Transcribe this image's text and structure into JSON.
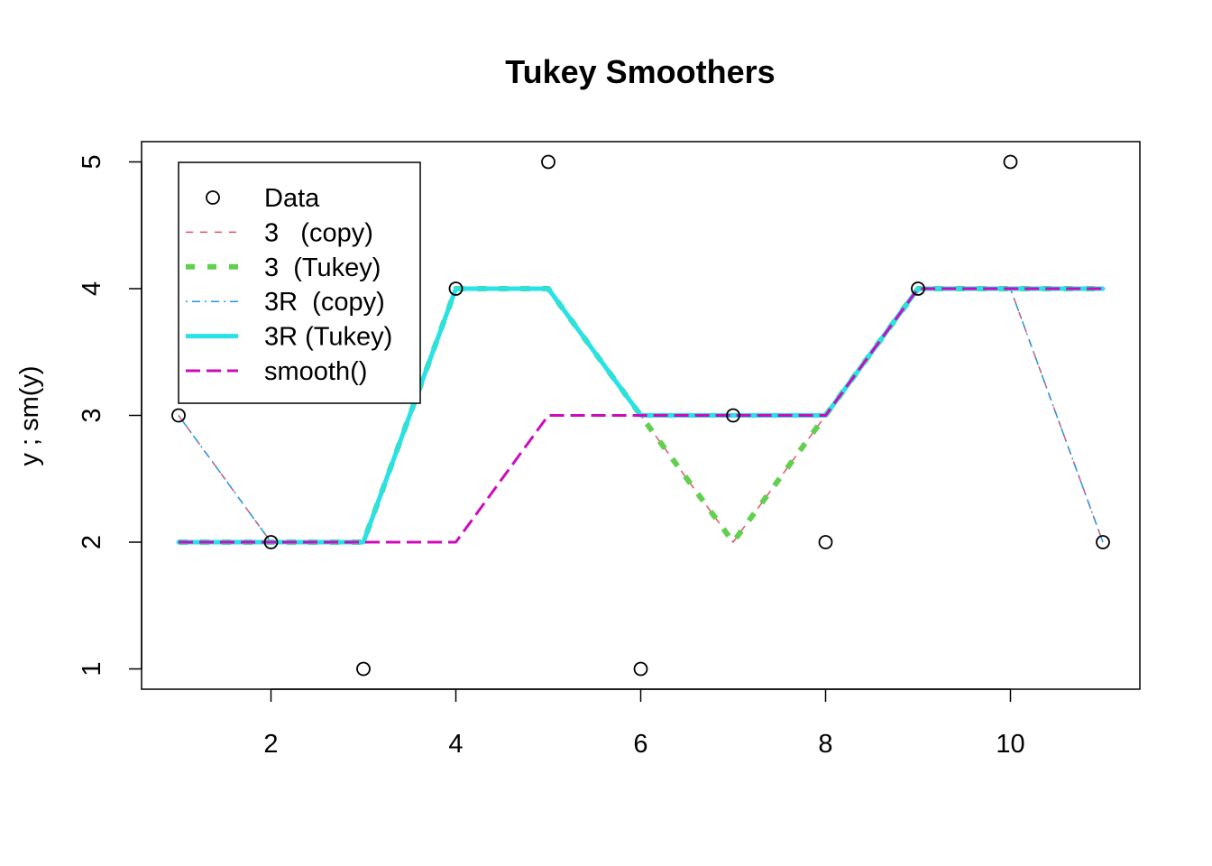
{
  "chart_data": {
    "type": "line",
    "title": "Tukey Smoothers",
    "xlabel": "",
    "ylabel": "y ;  sm(y)",
    "xlim": [
      0.6,
      11.4
    ],
    "ylim": [
      0.84,
      5.16
    ],
    "x_ticks": [
      2,
      4,
      6,
      8,
      10
    ],
    "y_ticks": [
      1,
      2,
      3,
      4,
      5
    ],
    "x": [
      1,
      2,
      3,
      4,
      5,
      6,
      7,
      8,
      9,
      10,
      11
    ],
    "points": {
      "name": "Data",
      "values": [
        3,
        2,
        1,
        4,
        5,
        1,
        3,
        2,
        4,
        5,
        2
      ]
    },
    "series": [
      {
        "name": "3   (copy)",
        "color": "#DF536B",
        "style": "dashed",
        "width": 1.5,
        "values": [
          3,
          2,
          2,
          4,
          4,
          3,
          2,
          3,
          4,
          4,
          2
        ]
      },
      {
        "name": "3  (Tukey)",
        "color": "#61D04F",
        "style": "dashed",
        "width": 6,
        "values": [
          2,
          2,
          2,
          4,
          4,
          3,
          2,
          3,
          4,
          4,
          4
        ]
      },
      {
        "name": "3R  (copy)",
        "color": "#2297E6",
        "style": "dotdash",
        "width": 1.5,
        "values": [
          3,
          2,
          2,
          4,
          4,
          3,
          3,
          3,
          4,
          4,
          2
        ]
      },
      {
        "name": "3R (Tukey)",
        "color": "#28E2E5",
        "style": "solid",
        "width": 5,
        "values": [
          2,
          2,
          2,
          4,
          4,
          3,
          3,
          3,
          4,
          4,
          4
        ]
      },
      {
        "name": "smooth()",
        "color": "#CD0BBC",
        "style": "longdash",
        "width": 3,
        "values": [
          2,
          2,
          2,
          2,
          3,
          3,
          3,
          3,
          4,
          4,
          4
        ]
      }
    ],
    "legend": {
      "position": "top-left",
      "entries": [
        "Data",
        "3   (copy)",
        "3  (Tukey)",
        "3R  (copy)",
        "3R (Tukey)",
        "smooth()"
      ]
    },
    "grid": false
  }
}
